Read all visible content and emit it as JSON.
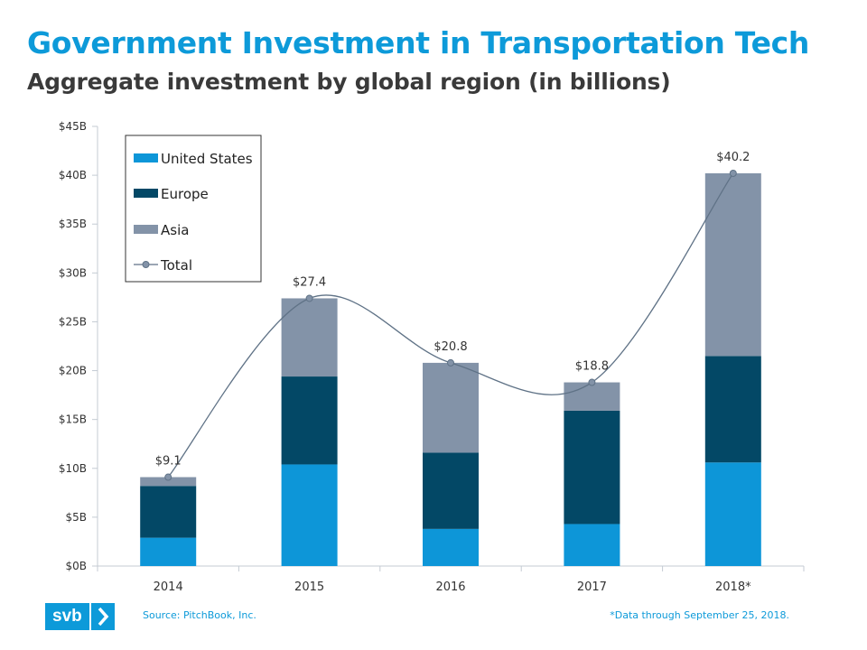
{
  "header": {
    "title": "Government Investment in Transportation Tech",
    "subtitle": "Aggregate investment by global region (in billions)"
  },
  "chart_data": {
    "type": "bar",
    "stacked": true,
    "categories": [
      "2014",
      "2015",
      "2016",
      "2017",
      "2018*"
    ],
    "series": [
      {
        "name": "United States",
        "color": "#0d96d8",
        "values": [
          2.9,
          10.4,
          3.8,
          4.3,
          10.6
        ]
      },
      {
        "name": "Europe",
        "color": "#034866",
        "values": [
          5.3,
          9.0,
          7.8,
          11.6,
          10.9
        ]
      },
      {
        "name": "Asia",
        "color": "#8393a8",
        "values": [
          0.9,
          8.0,
          9.2,
          2.9,
          18.7
        ]
      }
    ],
    "total_series": {
      "name": "Total",
      "color": "#5f7286",
      "type": "line",
      "smooth": true,
      "values": [
        9.1,
        27.4,
        20.8,
        18.8,
        40.2
      ],
      "labels": [
        "$9.1",
        "$27.4",
        "$20.8",
        "$18.8",
        "$40.2"
      ]
    },
    "y_ticks": [
      0,
      5,
      10,
      15,
      20,
      25,
      30,
      35,
      40,
      45
    ],
    "y_tick_labels": [
      "$0B",
      "$5B",
      "$10B",
      "$15B",
      "$20B",
      "$25B",
      "$30B",
      "$35B",
      "$40B",
      "$45B"
    ],
    "ylim": [
      0,
      45
    ],
    "xlabel": "",
    "ylabel": "",
    "grid": false,
    "legend": {
      "placement": "top-left",
      "entries": [
        "United States",
        "Europe",
        "Asia",
        "Total"
      ]
    }
  },
  "footer": {
    "logo_text": "svb",
    "source": "Source: PitchBook, Inc.",
    "footnote": "*Data through September 25, 2018."
  }
}
